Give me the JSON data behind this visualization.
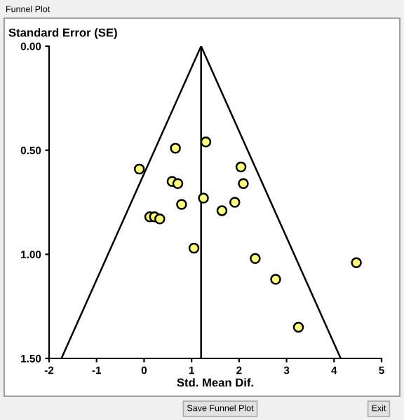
{
  "chart_data": {
    "type": "scatter",
    "title": "Funnel Plot",
    "xlabel": "Std. Mean Dif.",
    "ylabel": "Standard Error (SE)",
    "xlim": [
      -2,
      5
    ],
    "xticks": [
      -2,
      -1,
      0,
      1,
      2,
      3,
      4,
      5
    ],
    "ylim": [
      1.5,
      0
    ],
    "yticks": [
      {
        "value": 0,
        "label": "0.00"
      },
      {
        "value": 0.5,
        "label": "0.50"
      },
      {
        "value": 1.0,
        "label": "1.00"
      },
      {
        "value": 1.5,
        "label": "1.50"
      }
    ],
    "grid": false,
    "legend": false,
    "series": [
      {
        "marker": "circle",
        "color": "#ffff80",
        "x": [
          -0.1,
          0.66,
          1.3,
          2.04,
          0.59,
          0.71,
          2.09,
          1.25,
          0.79,
          1.91,
          1.64,
          0.12,
          0.22,
          0.33,
          1.05,
          2.34,
          4.47,
          2.77,
          3.25
        ],
        "values": [
          0.59,
          0.49,
          0.46,
          0.58,
          0.65,
          0.66,
          0.66,
          0.73,
          0.76,
          0.75,
          0.79,
          0.82,
          0.82,
          0.83,
          0.97,
          1.02,
          1.04,
          1.12,
          1.35
        ]
      },
      {
        "type": "line",
        "color": "#000000",
        "x": [
          -1.74,
          1.2,
          4.14
        ],
        "values": [
          1.5,
          0,
          1.5
        ]
      }
    ],
    "ref_lines": [
      {
        "axis": "x",
        "value": 1.2,
        "color": "#000000"
      }
    ],
    "annotations": [
      "Save Funnel Plot",
      "Exit"
    ]
  }
}
